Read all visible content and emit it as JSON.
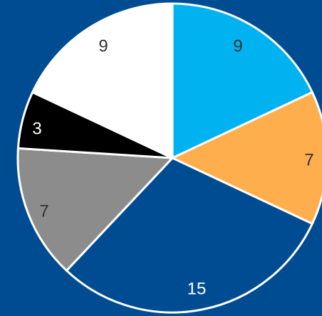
{
  "background": "#004C93",
  "chart_data": {
    "type": "pie",
    "title": "",
    "start_angle_deg": 0,
    "direction": "clockwise",
    "slices": [
      {
        "value": 9,
        "label": "9",
        "color": "#00B2F0",
        "label_color": "#333333"
      },
      {
        "value": 7,
        "label": "7",
        "color": "#FFAE4D",
        "label_color": "#333333"
      },
      {
        "value": 15,
        "label": "15",
        "color": "#004C93",
        "label_color": "#FFFFFF"
      },
      {
        "value": 7,
        "label": "7",
        "color": "#8C8C8C",
        "label_color": "#333333"
      },
      {
        "value": 3,
        "label": "3",
        "color": "#000000",
        "label_color": "#FFFFFF"
      },
      {
        "value": 9,
        "label": "9",
        "color": "#FFFFFF",
        "label_color": "#333333"
      }
    ],
    "border_color": "#FFFFFF"
  }
}
